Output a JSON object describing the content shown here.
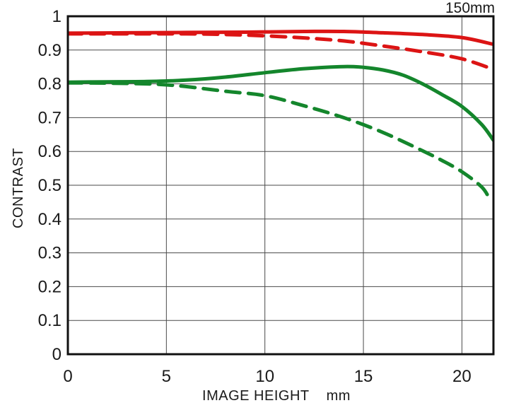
{
  "chart_data": {
    "type": "line",
    "title": "150mm",
    "xlabel": "IMAGE HEIGHT",
    "xunit": "mm",
    "ylabel": "CONTRAST",
    "xlim": [
      0,
      21.6
    ],
    "ylim": [
      0,
      1
    ],
    "grid": true,
    "legend": "none",
    "xticks": [
      {
        "v": 0,
        "label": "0"
      },
      {
        "v": 5,
        "label": "5"
      },
      {
        "v": 10,
        "label": "10"
      },
      {
        "v": 15,
        "label": "15"
      },
      {
        "v": 20,
        "label": "20"
      }
    ],
    "yticks": [
      {
        "v": 0,
        "label": "0"
      },
      {
        "v": 0.1,
        "label": "0.1"
      },
      {
        "v": 0.2,
        "label": "0.2"
      },
      {
        "v": 0.3,
        "label": "0.3"
      },
      {
        "v": 0.4,
        "label": "0.4"
      },
      {
        "v": 0.5,
        "label": "0.5"
      },
      {
        "v": 0.6,
        "label": "0.6"
      },
      {
        "v": 0.7,
        "label": "0.7"
      },
      {
        "v": 0.8,
        "label": "0.8"
      },
      {
        "v": 0.9,
        "label": "0.9"
      },
      {
        "v": 1,
        "label": "1"
      }
    ],
    "colors": {
      "red": "#dc1414",
      "green": "#14862c",
      "grid": "#4a4a4a",
      "axis": "#111111",
      "background": "#ffffff"
    },
    "series": [
      {
        "name": "red-solid",
        "color_key": "red",
        "style": "solid",
        "points": [
          [
            0,
            0.95
          ],
          [
            3,
            0.951
          ],
          [
            6,
            0.952
          ],
          [
            9,
            0.953
          ],
          [
            12,
            0.955
          ],
          [
            14,
            0.955
          ],
          [
            16,
            0.951
          ],
          [
            18,
            0.946
          ],
          [
            20,
            0.937
          ],
          [
            21.6,
            0.917
          ]
        ]
      },
      {
        "name": "red-dashed",
        "color_key": "red",
        "style": "dashed",
        "points": [
          [
            0,
            0.948
          ],
          [
            3,
            0.948
          ],
          [
            6,
            0.948
          ],
          [
            8,
            0.946
          ],
          [
            10,
            0.942
          ],
          [
            12,
            0.936
          ],
          [
            14,
            0.927
          ],
          [
            16,
            0.912
          ],
          [
            18,
            0.895
          ],
          [
            20,
            0.874
          ],
          [
            21.6,
            0.843
          ]
        ]
      },
      {
        "name": "green-solid",
        "color_key": "green",
        "style": "solid",
        "points": [
          [
            0,
            0.805
          ],
          [
            2,
            0.806
          ],
          [
            4,
            0.807
          ],
          [
            6,
            0.811
          ],
          [
            8,
            0.82
          ],
          [
            10,
            0.833
          ],
          [
            12,
            0.845
          ],
          [
            14,
            0.851
          ],
          [
            15,
            0.849
          ],
          [
            16,
            0.841
          ],
          [
            17,
            0.826
          ],
          [
            18,
            0.8
          ],
          [
            19,
            0.768
          ],
          [
            20,
            0.733
          ],
          [
            21,
            0.68
          ],
          [
            21.6,
            0.633
          ]
        ]
      },
      {
        "name": "green-dashed",
        "color_key": "green",
        "style": "dashed",
        "points": [
          [
            0,
            0.803
          ],
          [
            2,
            0.802
          ],
          [
            4,
            0.8
          ],
          [
            5,
            0.797
          ],
          [
            6,
            0.792
          ],
          [
            8,
            0.778
          ],
          [
            10,
            0.765
          ],
          [
            12,
            0.735
          ],
          [
            14,
            0.7
          ],
          [
            16,
            0.656
          ],
          [
            18,
            0.602
          ],
          [
            19,
            0.573
          ],
          [
            20,
            0.54
          ],
          [
            21,
            0.495
          ],
          [
            21.4,
            0.46
          ]
        ]
      }
    ]
  }
}
